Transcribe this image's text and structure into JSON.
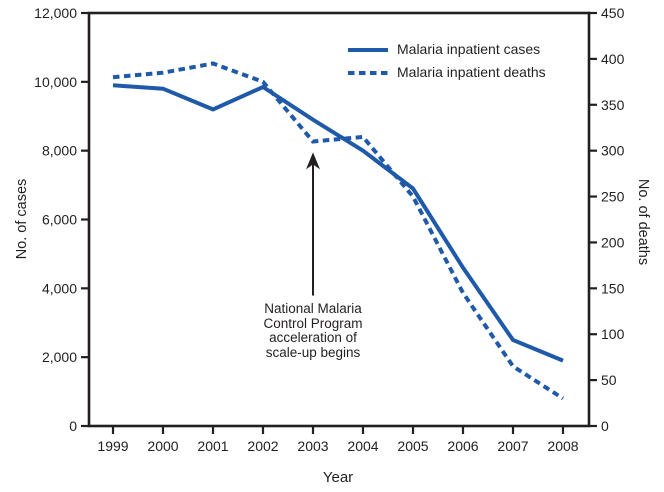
{
  "chart_data": {
    "type": "line",
    "title": "",
    "x_categories": [
      "1999",
      "2000",
      "2001",
      "2002",
      "2003",
      "2004",
      "2005",
      "2006",
      "2007",
      "2008"
    ],
    "xlabel": "Year",
    "left_axis": {
      "label": "No. of cases",
      "range": [
        0,
        12000
      ],
      "tick_values": [
        0,
        2000,
        4000,
        6000,
        8000,
        10000,
        12000
      ],
      "tick_labels": [
        "0",
        "2,000",
        "4,000",
        "6,000",
        "8,000",
        "10,000",
        "12,000"
      ]
    },
    "right_axis": {
      "label": "No. of deaths",
      "range": [
        0,
        450
      ],
      "tick_values": [
        0,
        50,
        100,
        150,
        200,
        250,
        300,
        350,
        400,
        450
      ],
      "tick_labels": [
        "0",
        "50",
        "100",
        "150",
        "200",
        "250",
        "300",
        "350",
        "400",
        "450"
      ]
    },
    "series": [
      {
        "name": "Malaria inpatient cases",
        "axis": "left",
        "line_style": "solid",
        "values": [
          9900,
          9800,
          9200,
          9850,
          8900,
          8000,
          6900,
          4600,
          2500,
          1900
        ]
      },
      {
        "name": "Malaria inpatient deaths",
        "axis": "right",
        "line_style": "dashed",
        "values": [
          380,
          385,
          395,
          375,
          310,
          315,
          250,
          145,
          65,
          30
        ]
      }
    ],
    "grid": false,
    "legend_position": "top-right-inside",
    "annotation": {
      "lines": [
        "National Malaria",
        "Control Program",
        "acceleration of",
        "scale-up begins"
      ],
      "arrow_points_to_year": "2003",
      "arrow_tip_cases_value": 7950,
      "arrow_tail_cases_value": 3790
    },
    "colors": {
      "line": "#1e5aa9",
      "text": "#231f20",
      "background": "#ffffff"
    }
  }
}
